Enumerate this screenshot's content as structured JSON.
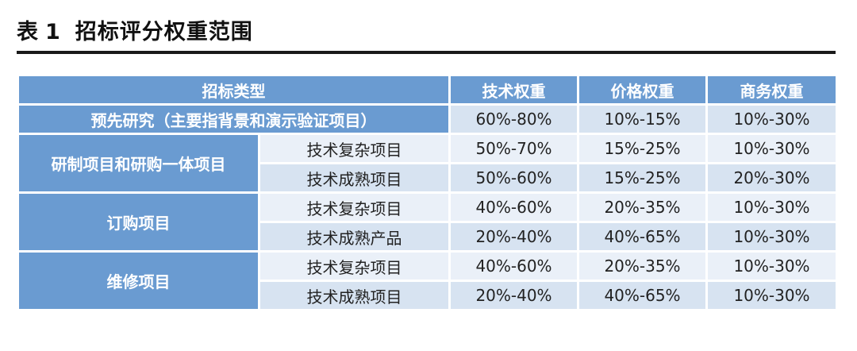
{
  "title": {
    "prefix": "表",
    "number": "1",
    "text": "招标评分权重范围"
  },
  "table": {
    "headers": [
      "招标类型",
      "技术权重",
      "价格权重",
      "商务权重"
    ],
    "rows": [
      {
        "category": "预先研究（主要指背景和演示验证项目）",
        "subtype": "",
        "tech": "60%-80%",
        "price": "10%-15%",
        "business": "10%-30%"
      },
      {
        "category": "研制项目和研购一体项目",
        "subtype": "技术复杂项目",
        "tech": "50%-70%",
        "price": "15%-25%",
        "business": "10%-30%"
      },
      {
        "category": "",
        "subtype": "技术成熟项目",
        "tech": "50%-60%",
        "price": "15%-25%",
        "business": "20%-30%"
      },
      {
        "category": "订购项目",
        "subtype": "技术复杂项目",
        "tech": "40%-60%",
        "price": "20%-35%",
        "business": "10%-30%"
      },
      {
        "category": "",
        "subtype": "技术成熟产品",
        "tech": "20%-40%",
        "price": "40%-65%",
        "business": "10%-30%"
      },
      {
        "category": "维修项目",
        "subtype": "技术复杂项目",
        "tech": "40%-60%",
        "price": "20%-35%",
        "business": "10%-30%"
      },
      {
        "category": "",
        "subtype": "技术成熟项目",
        "tech": "20%-40%",
        "price": "40%-65%",
        "business": "10%-30%"
      }
    ]
  },
  "colors": {
    "header_bg": "#6a9bd1",
    "row_light": "#eaf0f8",
    "row_mid": "#d7e3f1"
  }
}
